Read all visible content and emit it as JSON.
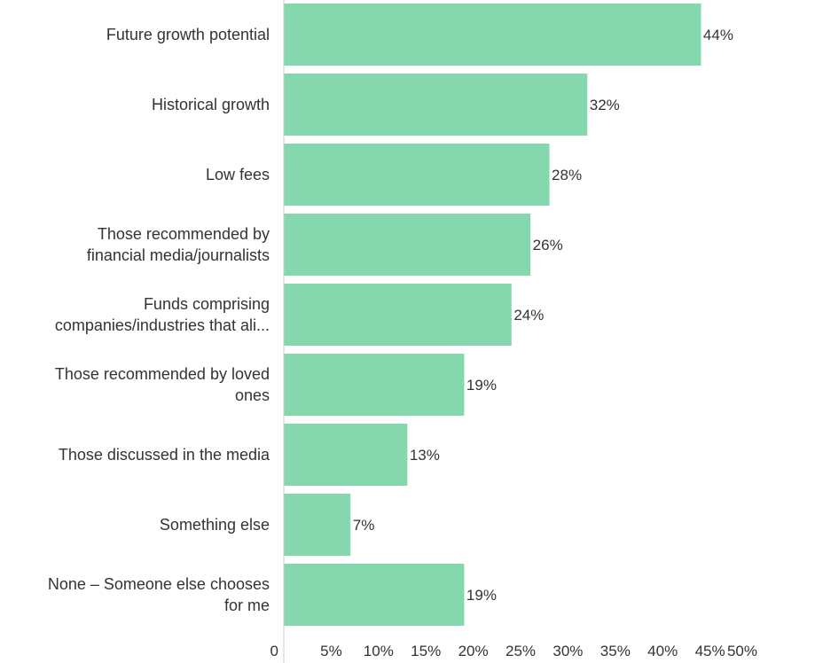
{
  "chart_data": {
    "type": "bar",
    "orientation": "horizontal",
    "categories": [
      "Future growth potential",
      "Historical growth",
      "Low fees",
      "Those recommended by financial media/journalists",
      "Funds comprising companies/industries that ali...",
      "Those recommended by loved ones",
      "Those discussed in the media",
      "Something else",
      "None – Someone else chooses for me"
    ],
    "category_lines": [
      [
        "Future growth potential"
      ],
      [
        "Historical growth"
      ],
      [
        "Low fees"
      ],
      [
        "Those recommended by",
        "financial media/journalists"
      ],
      [
        "Funds comprising",
        "companies/industries that ali..."
      ],
      [
        "Those recommended by loved",
        "ones"
      ],
      [
        "Those discussed in the media"
      ],
      [
        "Something else"
      ],
      [
        "None – Someone else chooses",
        "for me"
      ]
    ],
    "values": [
      44,
      32,
      28,
      26,
      24,
      19,
      13,
      7,
      19
    ],
    "data_labels": [
      "44%",
      "32%",
      "28%",
      "26%",
      "24%",
      "19%",
      "13%",
      "7%",
      "19%"
    ],
    "xticks": [
      "0",
      "5%",
      "10%",
      "15%",
      "20%",
      "25%",
      "30%",
      "35%",
      "40%",
      "45%",
      "50%"
    ],
    "xlim": [
      0,
      50
    ],
    "bar_color": "#85d8ad",
    "axis_color": "#cccccc",
    "text_color": "#333333",
    "title": "",
    "xlabel": "",
    "ylabel": "",
    "grid": false,
    "legend": "none"
  }
}
